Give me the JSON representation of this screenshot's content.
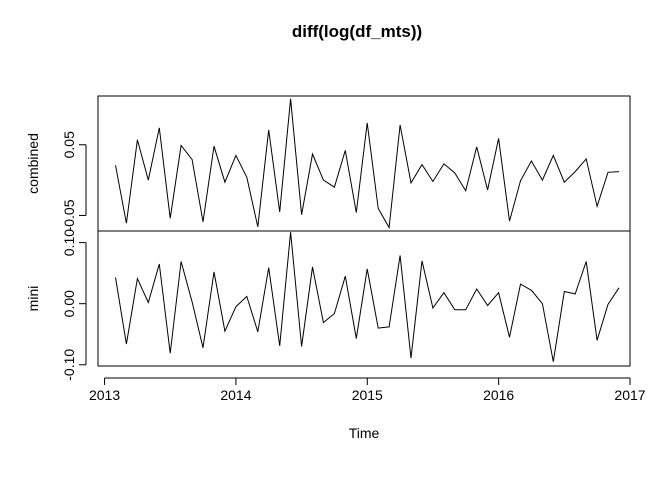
{
  "chart_data": {
    "type": "line",
    "title": "diff(log(df_mts))",
    "xlabel": "Time",
    "x": {
      "start": 2013.083,
      "step": 0.08333,
      "xlim": [
        2012.95,
        2017.0
      ],
      "ticks": [
        2013,
        2014,
        2015,
        2016,
        2017
      ],
      "tick_labels": [
        "2013",
        "2014",
        "2015",
        "2016",
        "2017"
      ]
    },
    "series": [
      {
        "name": "combined",
        "ylabel": "combined",
        "ylim": [
          -0.072,
          0.119
        ],
        "y_ticks": [
          -0.05,
          0.05
        ],
        "y_tick_labels": [
          "-0.05",
          "0.05"
        ],
        "values": [
          0.021,
          -0.061,
          0.057,
          0.0,
          0.074,
          -0.054,
          0.049,
          0.029,
          -0.059,
          0.048,
          -0.003,
          0.035,
          0.004,
          -0.066,
          0.071,
          -0.045,
          0.115,
          -0.049,
          0.037,
          0.0,
          -0.01,
          0.042,
          -0.046,
          0.081,
          -0.04,
          -0.067,
          0.078,
          -0.004,
          0.022,
          -0.002,
          0.023,
          0.01,
          -0.015,
          0.047,
          -0.014,
          0.059,
          -0.058,
          -0.001,
          0.027,
          0.0,
          0.035,
          -0.003,
          0.012,
          0.03,
          -0.037,
          0.011,
          0.012
        ]
      },
      {
        "name": "mini",
        "ylabel": "mini",
        "ylim": [
          -0.102,
          0.119
        ],
        "y_ticks": [
          -0.1,
          0.0,
          0.1
        ],
        "y_tick_labels": [
          "-0.10",
          "0.00",
          "0.10"
        ],
        "values": [
          0.043,
          -0.066,
          0.041,
          0.002,
          0.065,
          -0.081,
          0.069,
          0.003,
          -0.072,
          0.052,
          -0.045,
          -0.005,
          0.012,
          -0.046,
          0.059,
          -0.069,
          0.117,
          -0.07,
          0.06,
          -0.031,
          -0.016,
          0.045,
          -0.057,
          0.057,
          -0.04,
          -0.038,
          0.079,
          -0.089,
          0.07,
          -0.007,
          0.018,
          -0.01,
          -0.01,
          0.024,
          -0.003,
          0.018,
          -0.055,
          0.032,
          0.022,
          0.0,
          -0.095,
          0.02,
          0.016,
          0.069,
          -0.06,
          -0.001,
          0.026
        ]
      }
    ]
  }
}
